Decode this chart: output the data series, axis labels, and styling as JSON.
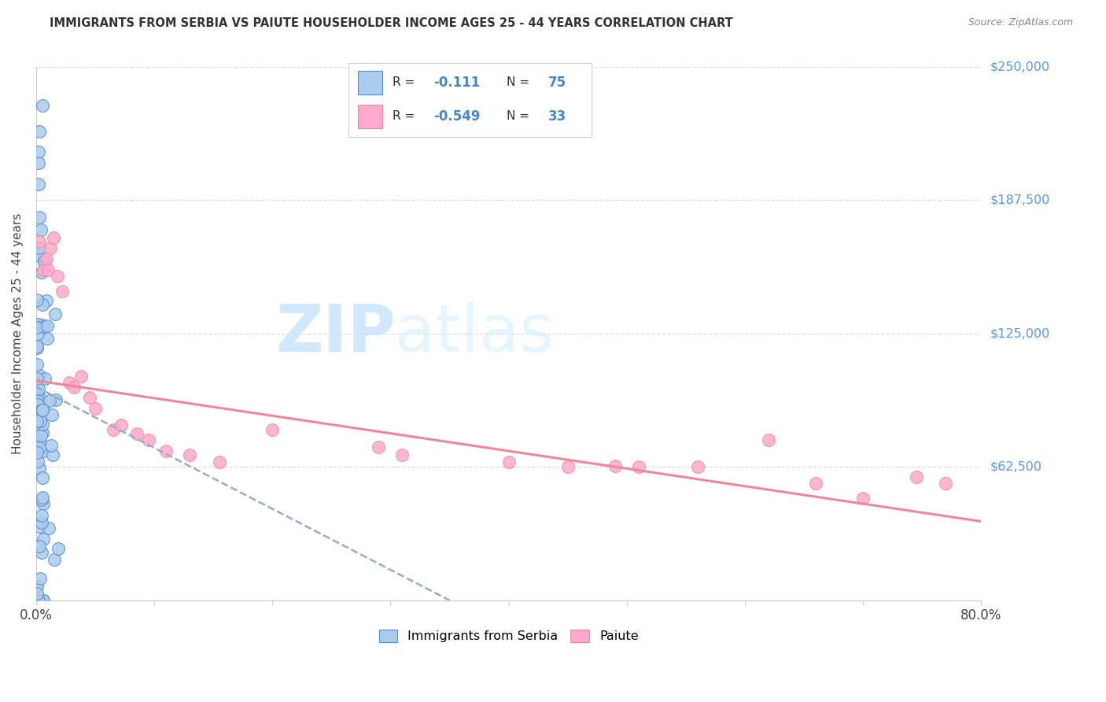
{
  "title": "IMMIGRANTS FROM SERBIA VS PAIUTE HOUSEHOLDER INCOME AGES 25 - 44 YEARS CORRELATION CHART",
  "source": "Source: ZipAtlas.com",
  "ylabel": "Householder Income Ages 25 - 44 years",
  "xlim": [
    0.0,
    0.8
  ],
  "ylim": [
    0,
    250000
  ],
  "serbia_R": -0.111,
  "serbia_N": 75,
  "paiute_R": -0.549,
  "paiute_N": 33,
  "blue_fill": "#AACCEE",
  "blue_edge": "#5588CC",
  "pink_fill": "#FFAACC",
  "pink_edge": "#EE8899",
  "serbia_trend_color": "#99AACC",
  "paiute_trend_color": "#EE8899",
  "serbia_trend_x0": 0.0,
  "serbia_trend_x1": 0.35,
  "serbia_trend_y0": 100000,
  "serbia_trend_y1": 0,
  "paiute_trend_x0": 0.0,
  "paiute_trend_x1": 0.8,
  "paiute_trend_y0": 103000,
  "paiute_trend_y1": 37000,
  "watermark_zip": "ZIP",
  "watermark_atlas": "atlas",
  "background_color": "#ffffff",
  "grid_color": "#dddddd",
  "right_label_color": "#5599DD",
  "title_color": "#333333",
  "source_color": "#888888"
}
